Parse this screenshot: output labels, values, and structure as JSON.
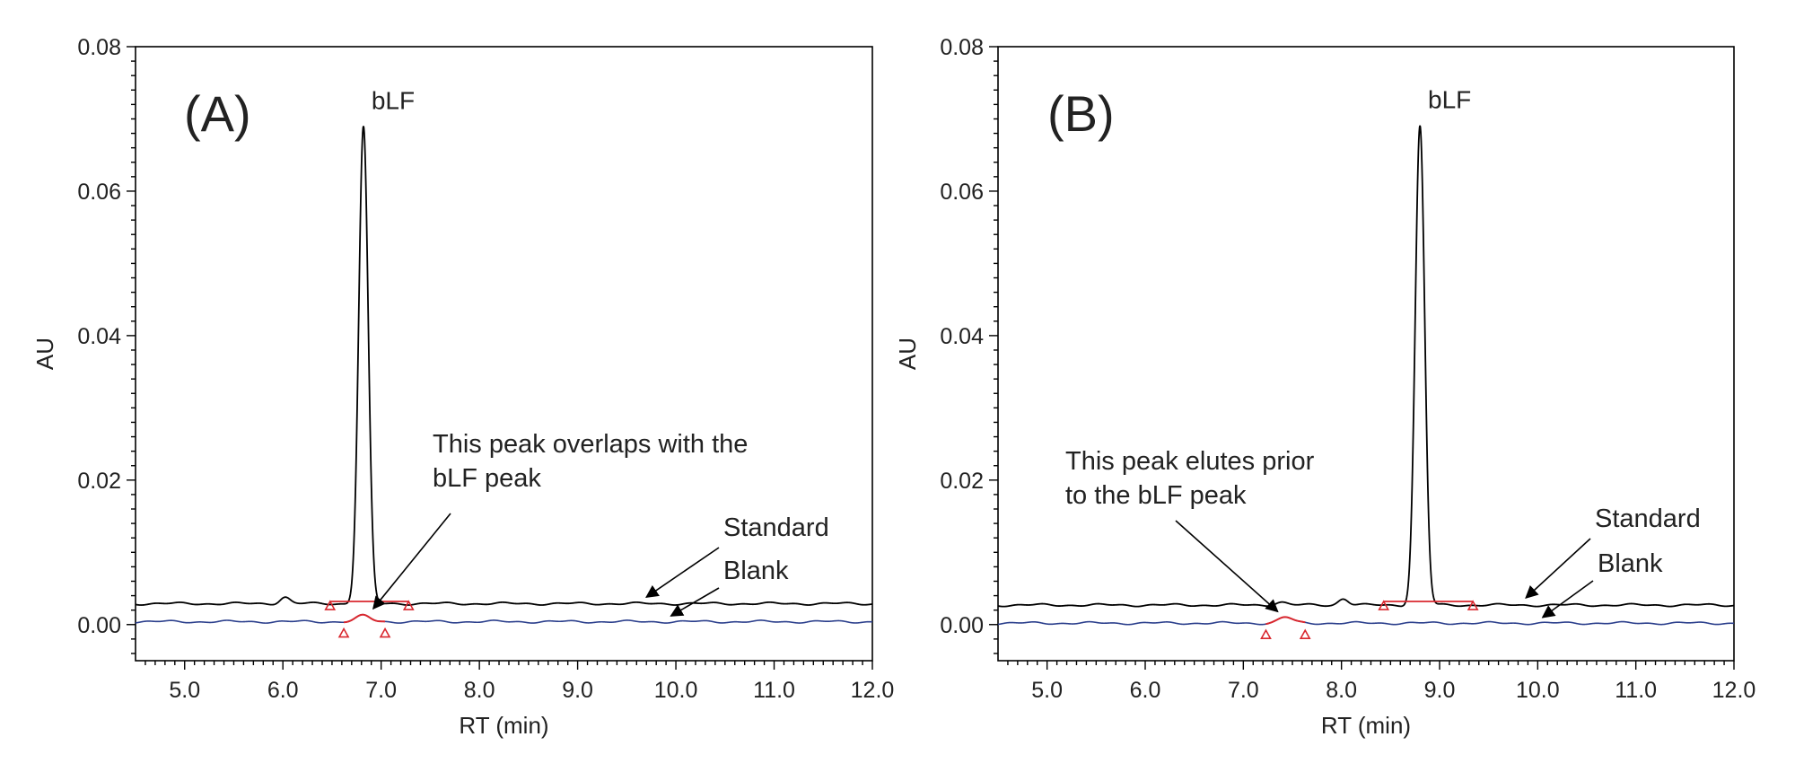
{
  "chart_data": [
    {
      "id": "A",
      "type": "line",
      "panel_label": "(A)",
      "xlabel": "RT (min)",
      "ylabel": "AU",
      "xlim": [
        4.5,
        12.0
      ],
      "ylim": [
        -0.005,
        0.08
      ],
      "xticks": [
        5.0,
        6.0,
        7.0,
        8.0,
        9.0,
        10.0,
        11.0,
        12.0
      ],
      "xtick_labels": [
        "5.0",
        "6.0",
        "7.0",
        "8.0",
        "9.0",
        "10.0",
        "11.0",
        "12.0"
      ],
      "yticks": [
        0.0,
        0.02,
        0.04,
        0.06,
        0.08
      ],
      "ytick_labels": [
        "0.00",
        "0.02",
        "0.04",
        "0.06",
        "0.08"
      ],
      "peak_label": "bLF",
      "series": [
        {
          "name": "Standard",
          "color": "#000000",
          "baseline": 0.0029,
          "peaks": [
            {
              "rt": 6.02,
              "height": 0.0009,
              "width": 0.05
            },
            {
              "rt": 6.82,
              "height": 0.066,
              "width": 0.048
            }
          ],
          "integration": {
            "start": 6.48,
            "end": 7.28,
            "level": 0.0032,
            "color": "#d9272e"
          }
        },
        {
          "name": "Blank",
          "color": "#2b3f8c",
          "baseline": 0.0004,
          "peaks": [
            {
              "rt": 6.82,
              "height": 0.0008,
              "width": 0.07
            }
          ],
          "integration": {
            "start": 6.62,
            "end": 7.04,
            "level": 0.0,
            "color": "#d9272e"
          }
        }
      ],
      "annotations": [
        {
          "text": [
            "This peak overlaps with the",
            "bLF peak"
          ],
          "points_to": {
            "x": 6.92,
            "y": 0.0022
          }
        },
        {
          "text": [
            "Standard"
          ],
          "points_to": {
            "x": 9.7,
            "y": 0.0038
          }
        },
        {
          "text": [
            "Blank"
          ],
          "points_to": {
            "x": 9.95,
            "y": 0.0012
          }
        }
      ]
    },
    {
      "id": "B",
      "type": "line",
      "panel_label": "(B)",
      "xlabel": "RT (min)",
      "ylabel": "AU",
      "xlim": [
        4.5,
        12.0
      ],
      "ylim": [
        -0.005,
        0.08
      ],
      "xticks": [
        5.0,
        6.0,
        7.0,
        8.0,
        9.0,
        10.0,
        11.0,
        12.0
      ],
      "xtick_labels": [
        "5.0",
        "6.0",
        "7.0",
        "8.0",
        "9.0",
        "10.0",
        "11.0",
        "12.0"
      ],
      "yticks": [
        0.0,
        0.02,
        0.04,
        0.06,
        0.08
      ],
      "ytick_labels": [
        "0.00",
        "0.02",
        "0.04",
        "0.06",
        "0.08"
      ],
      "peak_label": "bLF",
      "series": [
        {
          "name": "Standard",
          "color": "#000000",
          "baseline": 0.0027,
          "peaks": [
            {
              "rt": 7.38,
              "height": 0.0004,
              "width": 0.06
            },
            {
              "rt": 8.02,
              "height": 0.0009,
              "width": 0.05
            },
            {
              "rt": 8.8,
              "height": 0.0663,
              "width": 0.048
            }
          ],
          "integration": {
            "start": 8.43,
            "end": 9.34,
            "level": 0.0032,
            "color": "#d9272e"
          }
        },
        {
          "name": "Blank",
          "color": "#2b3f8c",
          "baseline": 0.0002,
          "peaks": [
            {
              "rt": 7.43,
              "height": 0.0008,
              "width": 0.07
            }
          ],
          "integration": {
            "start": 7.23,
            "end": 7.63,
            "level": 0.0,
            "color": "#d9272e"
          }
        }
      ],
      "annotations": [
        {
          "text": [
            "This peak elutes prior",
            "to the bLF peak"
          ],
          "points_to": {
            "x": 7.35,
            "y": 0.0018
          }
        },
        {
          "text": [
            "Standard"
          ],
          "points_to": {
            "x": 9.88,
            "y": 0.0037
          }
        },
        {
          "text": [
            "Blank"
          ],
          "points_to": {
            "x": 10.05,
            "y": 0.001
          }
        }
      ]
    }
  ]
}
